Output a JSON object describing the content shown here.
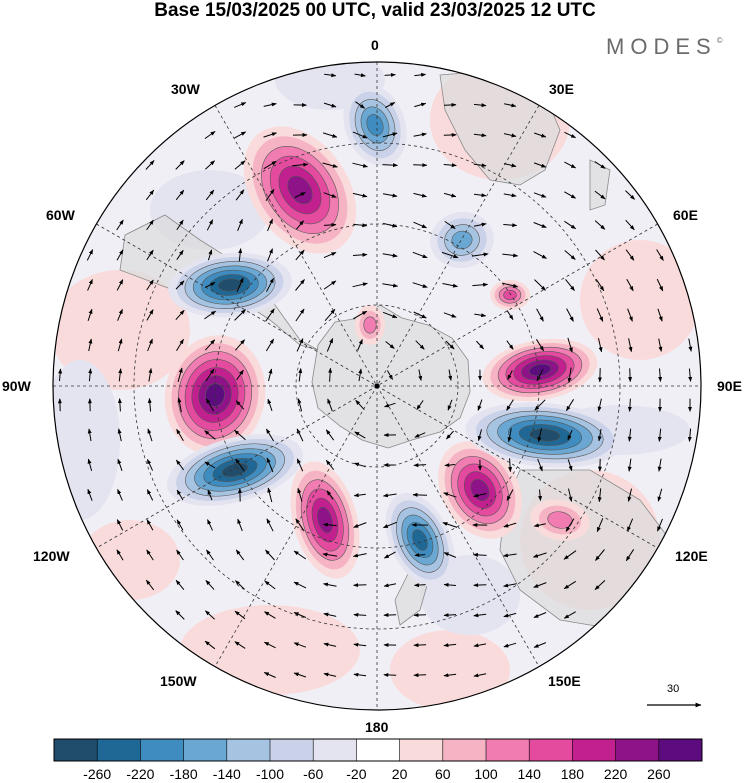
{
  "title": "Base 15/03/2025 00 UTC, valid 23/03/2025 12 UTC",
  "brand": "MODES",
  "brand_mark": "©",
  "longitude_labels": {
    "lon_0": "0",
    "lon_30e": "30E",
    "lon_60e": "60E",
    "lon_90e": "90E",
    "lon_120e": "120E",
    "lon_150e": "150E",
    "lon_180": "180",
    "lon_150w": "150W",
    "lon_120w": "120W",
    "lon_90w": "90W",
    "lon_60w": "60W",
    "lon_30w": "30W"
  },
  "reference_vector": "30",
  "colorbar": {
    "labels": [
      "-260",
      "-220",
      "-180",
      "-140",
      "-100",
      "-60",
      "-20",
      "20",
      "60",
      "100",
      "140",
      "180",
      "220",
      "260"
    ],
    "colors": [
      "#1f4d6b",
      "#1f6896",
      "#3f8cc0",
      "#6aa8d3",
      "#a6c3e1",
      "#c9d2e8",
      "#e4e4f1",
      "#ffffff",
      "#fadbdb",
      "#f5b3c4",
      "#f07cb1",
      "#e44b9f",
      "#c2208f",
      "#8e1389",
      "#5c0c7e"
    ]
  },
  "palette": {
    "land": "#e6e6e6",
    "coast": "#8a8a8a",
    "grid": "#333333"
  }
}
